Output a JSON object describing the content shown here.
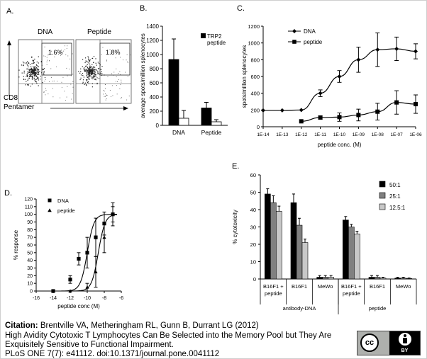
{
  "panels": {
    "A": {
      "label": "A.",
      "dna_title": "DNA",
      "peptide_title": "Peptide",
      "dna_gate_value": "1.6%",
      "peptide_gate_value": "1.8%",
      "y_axis_label": "CD8",
      "x_axis_label": "Pentamer"
    },
    "B": {
      "label": "B."
    },
    "C": {
      "label": "C."
    },
    "D": {
      "label": "D."
    },
    "E": {
      "label": "E."
    }
  },
  "citation": {
    "label": "Citation:",
    "authors": " Brentville VA, Metheringham RL, Gunn B, Durrant LG (2012)",
    "line2": "High Avidity Cytotoxic T Lymphocytes Can Be Selected into the Memory Pool but They Are",
    "line3": "Exquisitely Sensitive to Functional Impairment.",
    "line4": "PLoS ONE 7(7): e41112. doi:10.1371/journal.pone.0041112"
  },
  "license": {
    "cc": "cc",
    "by": "BY"
  },
  "colors": {
    "black": "#000000",
    "mid_gray": "#808080",
    "light_gray": "#c8c8c8",
    "white": "#ffffff"
  },
  "chart_data": [
    {
      "id": "B",
      "type": "bar",
      "categories": [
        "DNA",
        "Peptide"
      ],
      "ylabel": "average spots/million splenocytes",
      "ylim": [
        0,
        1400
      ],
      "yticks": [
        0,
        200,
        400,
        600,
        800,
        1000,
        1200,
        1400
      ],
      "series": [
        {
          "name": "TRP2 peptide",
          "color": "#000000",
          "values": [
            930,
            245
          ],
          "errors": [
            290,
            80
          ]
        },
        {
          "name": "",
          "color": "#ffffff",
          "values": [
            100,
            50
          ],
          "errors": [
            110,
            30
          ]
        }
      ],
      "legend": "top-right"
    },
    {
      "id": "C",
      "type": "line",
      "xlabel": "peptide conc. (M)",
      "ylabel": "spots/million splenocytes",
      "xlog": true,
      "xticks": [
        "1E-14",
        "1E-13",
        "1E-12",
        "1E-11",
        "1E-10",
        "1E-09",
        "1E-08",
        "1E-07",
        "1E-06"
      ],
      "xlim": [
        1e-14,
        1e-06
      ],
      "ylim": [
        0,
        1200
      ],
      "yticks": [
        0,
        200,
        400,
        600,
        800,
        1000,
        1200
      ],
      "series": [
        {
          "name": "DNA",
          "marker": "diamond",
          "x": [
            1e-14,
            1e-13,
            1e-12,
            1e-11,
            1e-10,
            1e-09,
            1e-08,
            1e-07,
            1e-06
          ],
          "y": [
            195,
            195,
            200,
            400,
            600,
            800,
            920,
            930,
            900
          ],
          "err": [
            0,
            0,
            0,
            40,
            70,
            150,
            200,
            140,
            90
          ]
        },
        {
          "name": "peptide",
          "marker": "square",
          "x": [
            1e-12,
            1e-11,
            1e-10,
            1e-09,
            1e-08,
            1e-07,
            1e-06
          ],
          "y": [
            65,
            110,
            115,
            140,
            180,
            290,
            270
          ],
          "err": [
            0,
            20,
            50,
            70,
            100,
            140,
            110
          ]
        }
      ],
      "legend": "top-left"
    },
    {
      "id": "D",
      "type": "scatter",
      "xlabel": "peptide conc (M)",
      "ylabel": "% response",
      "xlim": [
        -16,
        -6
      ],
      "xticks": [
        -16,
        -14,
        -12,
        -10,
        -8,
        -6
      ],
      "ylim": [
        0,
        120
      ],
      "yticks": [
        0,
        10,
        20,
        30,
        40,
        50,
        60,
        70,
        80,
        90,
        100,
        110,
        120
      ],
      "series": [
        {
          "name": "DNA",
          "marker": "square",
          "x": [
            -14,
            -12,
            -11,
            -10,
            -9,
            -8,
            -7
          ],
          "y": [
            0,
            15,
            42,
            50,
            70,
            88,
            100
          ],
          "err": [
            0,
            5,
            8,
            20,
            25,
            15,
            15
          ],
          "curve_ec50": -10.0
        },
        {
          "name": "peptide",
          "marker": "triangle",
          "x": [
            -14,
            -12,
            -10,
            -9,
            -8,
            -7
          ],
          "y": [
            0,
            0,
            5,
            25,
            70,
            100
          ],
          "err": [
            0,
            0,
            5,
            20,
            20,
            10
          ],
          "curve_ec50": -8.7
        }
      ],
      "legend": "top-left"
    },
    {
      "id": "E",
      "type": "bar",
      "categories": [
        "B16F1 + peptide",
        "B16F1",
        "MeWo",
        "B16F1 + peptide",
        "B16F1",
        "MeWo"
      ],
      "groups": [
        "antibody-DNA",
        "peptide"
      ],
      "ylabel": "% cytotoxicity",
      "ylim": [
        0,
        60
      ],
      "yticks": [
        0,
        10,
        20,
        30,
        40,
        50,
        60
      ],
      "series": [
        {
          "name": "50:1",
          "color": "#000000",
          "values": [
            49,
            44,
            1,
            34,
            1,
            0.5
          ],
          "errors": [
            3,
            5,
            1,
            2,
            1,
            0.5
          ]
        },
        {
          "name": "25:1",
          "color": "#808080",
          "values": [
            44,
            31,
            1,
            30,
            1,
            0.5
          ],
          "errors": [
            4,
            4,
            1,
            1.5,
            1,
            0.5
          ]
        },
        {
          "name": "12.5:1",
          "color": "#c8c8c8",
          "values": [
            39,
            21,
            1,
            26,
            0.5,
            0.3
          ],
          "errors": [
            3,
            2,
            1,
            1.5,
            0.5,
            0.3
          ]
        }
      ],
      "legend": "top-right"
    }
  ]
}
